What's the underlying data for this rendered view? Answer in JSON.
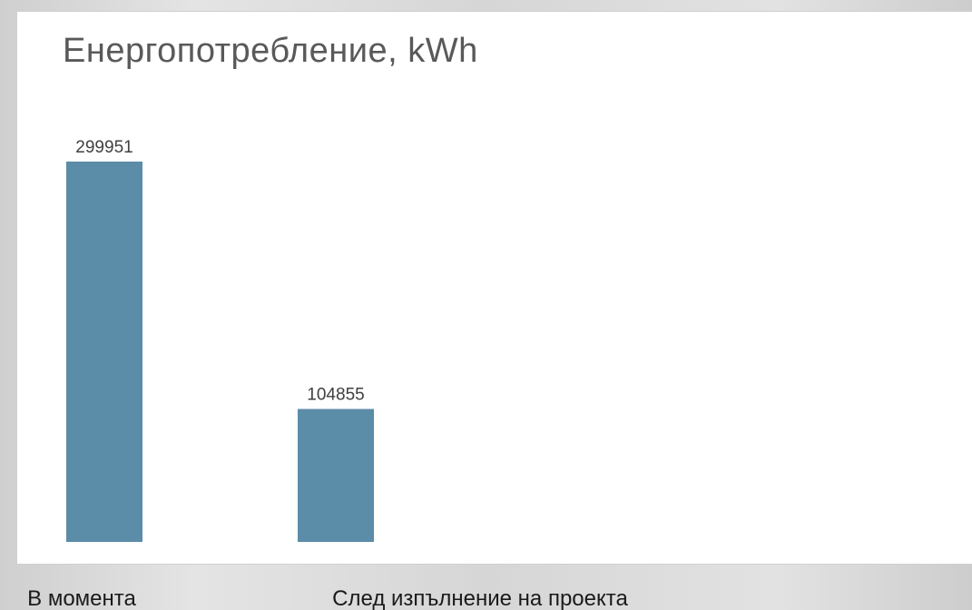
{
  "chart_data": {
    "type": "bar",
    "title": "Енергопотребление, kWh",
    "categories": [
      "В момента",
      "След изпълнение на проекта"
    ],
    "values": [
      299951,
      104855
    ],
    "data_labels": [
      "299951",
      "104855"
    ],
    "ylim": [
      0,
      299951
    ],
    "grid": false,
    "legend": "none",
    "bar_color": "#5b8ca8"
  }
}
